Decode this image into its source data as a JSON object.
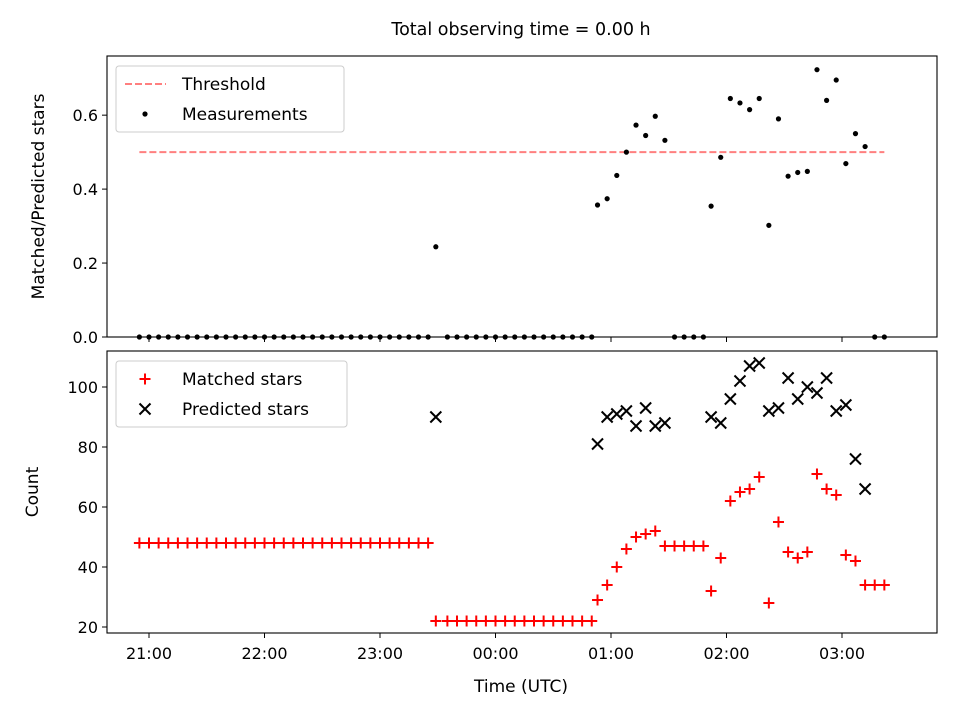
{
  "chart_data": {
    "type": "scatter",
    "title": "Total observing time = 0.00 h",
    "xlabel": "Time (UTC)",
    "x_ticks": [
      "21:00",
      "22:00",
      "23:00",
      "00:00",
      "01:00",
      "02:00",
      "03:00"
    ],
    "panels": [
      {
        "ylabel": "Matched/Predicted stars",
        "ylim": [
          0,
          0.76
        ],
        "y_ticks": [
          0.0,
          0.2,
          0.4,
          0.6
        ],
        "legend": {
          "placement": "top-left",
          "entries": [
            "Threshold",
            "Measurements"
          ]
        },
        "series": [
          {
            "name": "Threshold",
            "kind": "dashed-line",
            "color": "#ff7f7f",
            "points": [
              [
                "20:55",
                0.5
              ],
              [
                "03:22",
                0.5
              ]
            ]
          },
          {
            "name": "Measurements",
            "kind": "dot",
            "color": "#000000",
            "points": [
              [
                "20:55",
                0
              ],
              [
                "21:00",
                0
              ],
              [
                "21:05",
                0
              ],
              [
                "21:10",
                0
              ],
              [
                "21:15",
                0
              ],
              [
                "21:20",
                0
              ],
              [
                "21:25",
                0
              ],
              [
                "21:30",
                0
              ],
              [
                "21:35",
                0
              ],
              [
                "21:40",
                0
              ],
              [
                "21:45",
                0
              ],
              [
                "21:50",
                0
              ],
              [
                "21:55",
                0
              ],
              [
                "22:00",
                0
              ],
              [
                "22:05",
                0
              ],
              [
                "22:10",
                0
              ],
              [
                "22:15",
                0
              ],
              [
                "22:20",
                0
              ],
              [
                "22:25",
                0
              ],
              [
                "22:30",
                0
              ],
              [
                "22:35",
                0
              ],
              [
                "22:40",
                0
              ],
              [
                "22:45",
                0
              ],
              [
                "22:50",
                0
              ],
              [
                "22:55",
                0
              ],
              [
                "23:00",
                0
              ],
              [
                "23:05",
                0
              ],
              [
                "23:10",
                0
              ],
              [
                "23:15",
                0
              ],
              [
                "23:20",
                0
              ],
              [
                "23:25",
                0
              ],
              [
                "23:29",
                0.244
              ],
              [
                "23:35",
                0
              ],
              [
                "23:40",
                0
              ],
              [
                "23:45",
                0
              ],
              [
                "23:50",
                0
              ],
              [
                "23:55",
                0
              ],
              [
                "00:00",
                0
              ],
              [
                "00:05",
                0
              ],
              [
                "00:10",
                0
              ],
              [
                "00:15",
                0
              ],
              [
                "00:20",
                0
              ],
              [
                "00:25",
                0
              ],
              [
                "00:30",
                0
              ],
              [
                "00:35",
                0
              ],
              [
                "00:40",
                0
              ],
              [
                "00:45",
                0
              ],
              [
                "00:50",
                0
              ],
              [
                "00:53",
                0.357
              ],
              [
                "00:58",
                0.374
              ],
              [
                "01:03",
                0.437
              ],
              [
                "01:08",
                0.5
              ],
              [
                "01:13",
                0.573
              ],
              [
                "01:18",
                0.545
              ],
              [
                "01:23",
                0.597
              ],
              [
                "01:28",
                0.532
              ],
              [
                "01:33",
                0
              ],
              [
                "01:38",
                0
              ],
              [
                "01:43",
                0
              ],
              [
                "01:48",
                0
              ],
              [
                "01:52",
                0.354
              ],
              [
                "01:57",
                0.486
              ],
              [
                "02:02",
                0.645
              ],
              [
                "02:07",
                0.633
              ],
              [
                "02:12",
                0.615
              ],
              [
                "02:17",
                0.645
              ],
              [
                "02:22",
                0.302
              ],
              [
                "02:27",
                0.59
              ],
              [
                "02:32",
                0.435
              ],
              [
                "02:37",
                0.445
              ],
              [
                "02:42",
                0.448
              ],
              [
                "02:47",
                0.723
              ],
              [
                "02:52",
                0.64
              ],
              [
                "02:57",
                0.695
              ],
              [
                "03:02",
                0.469
              ],
              [
                "03:07",
                0.55
              ],
              [
                "03:12",
                0.515
              ],
              [
                "03:17",
                0
              ],
              [
                "03:22",
                0
              ]
            ]
          }
        ]
      },
      {
        "ylabel": "Count",
        "ylim": [
          18,
          112
        ],
        "y_ticks": [
          20,
          40,
          60,
          80,
          100
        ],
        "legend": {
          "placement": "top-left",
          "entries": [
            "Matched stars",
            "Predicted stars"
          ]
        },
        "series": [
          {
            "name": "Matched stars",
            "kind": "plus",
            "color": "#ff0000",
            "points": [
              [
                "20:55",
                48
              ],
              [
                "21:00",
                48
              ],
              [
                "21:05",
                48
              ],
              [
                "21:10",
                48
              ],
              [
                "21:15",
                48
              ],
              [
                "21:20",
                48
              ],
              [
                "21:25",
                48
              ],
              [
                "21:30",
                48
              ],
              [
                "21:35",
                48
              ],
              [
                "21:40",
                48
              ],
              [
                "21:45",
                48
              ],
              [
                "21:50",
                48
              ],
              [
                "21:55",
                48
              ],
              [
                "22:00",
                48
              ],
              [
                "22:05",
                48
              ],
              [
                "22:10",
                48
              ],
              [
                "22:15",
                48
              ],
              [
                "22:20",
                48
              ],
              [
                "22:25",
                48
              ],
              [
                "22:30",
                48
              ],
              [
                "22:35",
                48
              ],
              [
                "22:40",
                48
              ],
              [
                "22:45",
                48
              ],
              [
                "22:50",
                48
              ],
              [
                "22:55",
                48
              ],
              [
                "23:00",
                48
              ],
              [
                "23:05",
                48
              ],
              [
                "23:10",
                48
              ],
              [
                "23:15",
                48
              ],
              [
                "23:20",
                48
              ],
              [
                "23:25",
                48
              ],
              [
                "23:29",
                22
              ],
              [
                "23:35",
                22
              ],
              [
                "23:40",
                22
              ],
              [
                "23:45",
                22
              ],
              [
                "23:50",
                22
              ],
              [
                "23:55",
                22
              ],
              [
                "00:00",
                22
              ],
              [
                "00:05",
                22
              ],
              [
                "00:10",
                22
              ],
              [
                "00:15",
                22
              ],
              [
                "00:20",
                22
              ],
              [
                "00:25",
                22
              ],
              [
                "00:30",
                22
              ],
              [
                "00:35",
                22
              ],
              [
                "00:40",
                22
              ],
              [
                "00:45",
                22
              ],
              [
                "00:50",
                22
              ],
              [
                "00:53",
                29
              ],
              [
                "00:58",
                34
              ],
              [
                "01:03",
                40
              ],
              [
                "01:08",
                46
              ],
              [
                "01:13",
                50
              ],
              [
                "01:18",
                51
              ],
              [
                "01:23",
                52
              ],
              [
                "01:28",
                47
              ],
              [
                "01:33",
                47
              ],
              [
                "01:38",
                47
              ],
              [
                "01:43",
                47
              ],
              [
                "01:48",
                47
              ],
              [
                "01:52",
                32
              ],
              [
                "01:57",
                43
              ],
              [
                "02:02",
                62
              ],
              [
                "02:07",
                65
              ],
              [
                "02:12",
                66
              ],
              [
                "02:17",
                70
              ],
              [
                "02:22",
                28
              ],
              [
                "02:27",
                55
              ],
              [
                "02:32",
                45
              ],
              [
                "02:37",
                43
              ],
              [
                "02:42",
                45
              ],
              [
                "02:47",
                71
              ],
              [
                "02:52",
                66
              ],
              [
                "02:57",
                64
              ],
              [
                "03:02",
                44
              ],
              [
                "03:07",
                42
              ],
              [
                "03:12",
                34
              ],
              [
                "03:17",
                34
              ],
              [
                "03:22",
                34
              ]
            ]
          },
          {
            "name": "Predicted stars",
            "kind": "cross",
            "color": "#000000",
            "points": [
              [
                "23:29",
                90
              ],
              [
                "00:53",
                81
              ],
              [
                "00:58",
                90
              ],
              [
                "01:03",
                91
              ],
              [
                "01:08",
                92
              ],
              [
                "01:13",
                87
              ],
              [
                "01:18",
                93
              ],
              [
                "01:23",
                87
              ],
              [
                "01:28",
                88
              ],
              [
                "01:52",
                90
              ],
              [
                "01:57",
                88
              ],
              [
                "02:02",
                96
              ],
              [
                "02:07",
                102
              ],
              [
                "02:12",
                107
              ],
              [
                "02:17",
                108
              ],
              [
                "02:22",
                92
              ],
              [
                "02:27",
                93
              ],
              [
                "02:32",
                103
              ],
              [
                "02:37",
                96
              ],
              [
                "02:42",
                100
              ],
              [
                "02:47",
                98
              ],
              [
                "02:52",
                103
              ],
              [
                "02:57",
                92
              ],
              [
                "03:02",
                94
              ],
              [
                "03:07",
                76
              ],
              [
                "03:12",
                66
              ]
            ]
          }
        ]
      }
    ]
  }
}
